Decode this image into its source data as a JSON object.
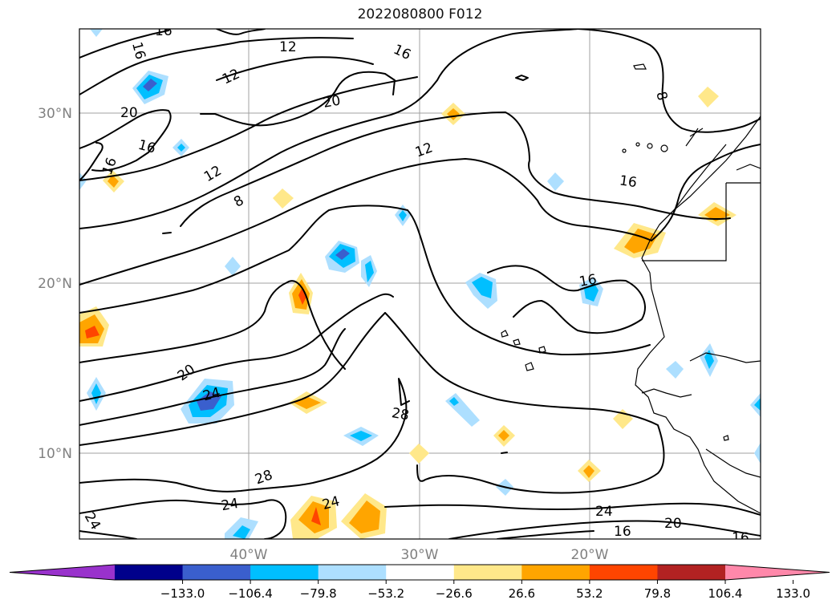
{
  "title": "2022080800 F012",
  "lat_labels": [
    "30°N",
    "20°N",
    "10°N"
  ],
  "lon_labels": [
    "40°W",
    "30°W",
    "20°W"
  ],
  "contour_labels": [
    "16",
    "16",
    "12",
    "12",
    "16",
    "20",
    "20",
    "16",
    "16",
    "12",
    "8",
    "12",
    "8",
    "16",
    "16",
    "20",
    "24",
    "28",
    "28",
    "24",
    "24",
    "24",
    "24",
    "16",
    "20",
    "16"
  ],
  "colorbar": {
    "ticks": [
      "−133.0",
      "−106.4",
      "−79.8",
      "−53.2",
      "−26.6",
      "26.6",
      "53.2",
      "79.8",
      "106.4",
      "133.0"
    ],
    "colors": [
      "#9932CC",
      "#00008B",
      "#3A5FCD",
      "#00BFFF",
      "#ADDFFF",
      "#FFFFFF",
      "#FFE88A",
      "#FFA500",
      "#FF4500",
      "#B22222",
      "#FF88AA"
    ]
  }
}
